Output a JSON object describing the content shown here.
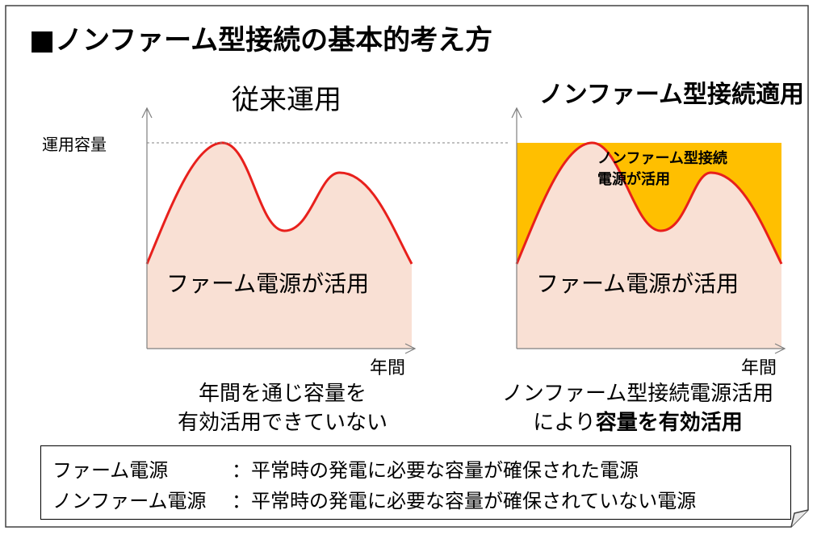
{
  "title": "■ノンファーム型接続の基本的考え方",
  "left_panel": {
    "heading": "従来運用",
    "ylabel": "運用容量",
    "xlabel": "年間",
    "area_label": "ファーム電源が活用",
    "caption_line1": "年間を通じ容量を",
    "caption_line2": "有効活用できていない"
  },
  "right_panel": {
    "heading": "ノンファーム型接続適用",
    "xlabel": "年間",
    "area_label": "ファーム電源が活用",
    "nonfirm_label_line1": "ノンファーム型接続",
    "nonfirm_label_line2": "電源が活用",
    "caption_line1": "ノンファーム型接続電源活用",
    "caption_line2_prefix": "により",
    "caption_line2_bold": "容量を有効活用"
  },
  "legend": {
    "firm_term": "ファーム電源",
    "firm_def": "：平常時の発電に必要な容量が確保された電源",
    "nonfirm_term": "ノンファーム電源",
    "nonfirm_def": "：平常時の発電に必要な容量が確保されていない電源"
  },
  "colors": {
    "curve": "#e8201c",
    "firm_fill": "#f9e0d4",
    "nonfirm_fill": "#ffbf00",
    "axis": "#7f7f7f",
    "frame": "#404040"
  }
}
